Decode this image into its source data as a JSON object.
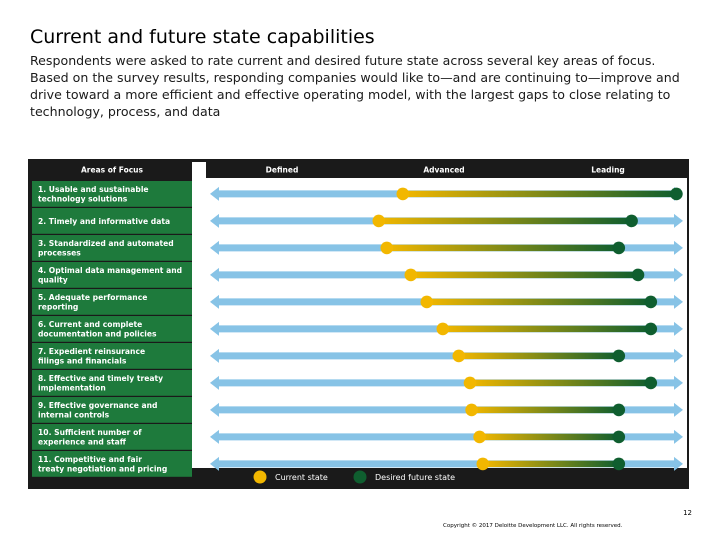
{
  "slide": {
    "title": "Current and future state capabilities",
    "description": "Respondents were asked to rate current and desired future state across several key areas of focus. Based on the survey results, responding companies would like to—and are continuing to—improve and drive toward a more efficient and effective operating model, with the largest gaps to close relating to technology, process, and data",
    "page_number": "12",
    "copyright": "Copyright © 2017 Deloitte Development LLC. All rights reserved."
  },
  "colors": {
    "header_bg": "#1a1a1a",
    "category_bg": "#1e7a3c",
    "track_blue": "#87c3e6",
    "current_dot": "#f2b700",
    "desired_dot": "#0f5e2f",
    "gradient_start": "#f2b700",
    "gradient_end": "#0f5e2f"
  },
  "chart_data": {
    "type": "dumbbell",
    "column_headers": [
      "Areas of Focus",
      "Defined",
      "Advanced",
      "Leading"
    ],
    "scale_levels": [
      "Defined",
      "Advanced",
      "Leading"
    ],
    "scale_range": [
      0,
      3
    ],
    "categories": [
      "1. Usable and sustainable technology solutions",
      "2. Timely and informative data",
      "3. Standardized and automated processes",
      "4. Optimal data management and quality",
      "5. Adequate performance reporting",
      "6. Current and complete documentation and policies",
      "7. Expedient reinsurance filings and financials",
      "8. Effective and timely treaty implementation",
      "9. Effective governance and internal controls",
      "10. Sufficient number of experience and staff",
      "11. Competitive and fair treaty negotiation and pricing"
    ],
    "series": [
      {
        "name": "Current state",
        "values": [
          1.23,
          1.08,
          1.13,
          1.28,
          1.38,
          1.48,
          1.58,
          1.65,
          1.66,
          1.71,
          1.73
        ]
      },
      {
        "name": "Desired future state",
        "values": [
          2.94,
          2.66,
          2.58,
          2.7,
          2.78,
          2.78,
          2.58,
          2.78,
          2.58,
          2.58,
          2.58
        ]
      }
    ],
    "legend": [
      "Current state",
      "Desired future state"
    ],
    "legend_position": "bottom-center"
  }
}
